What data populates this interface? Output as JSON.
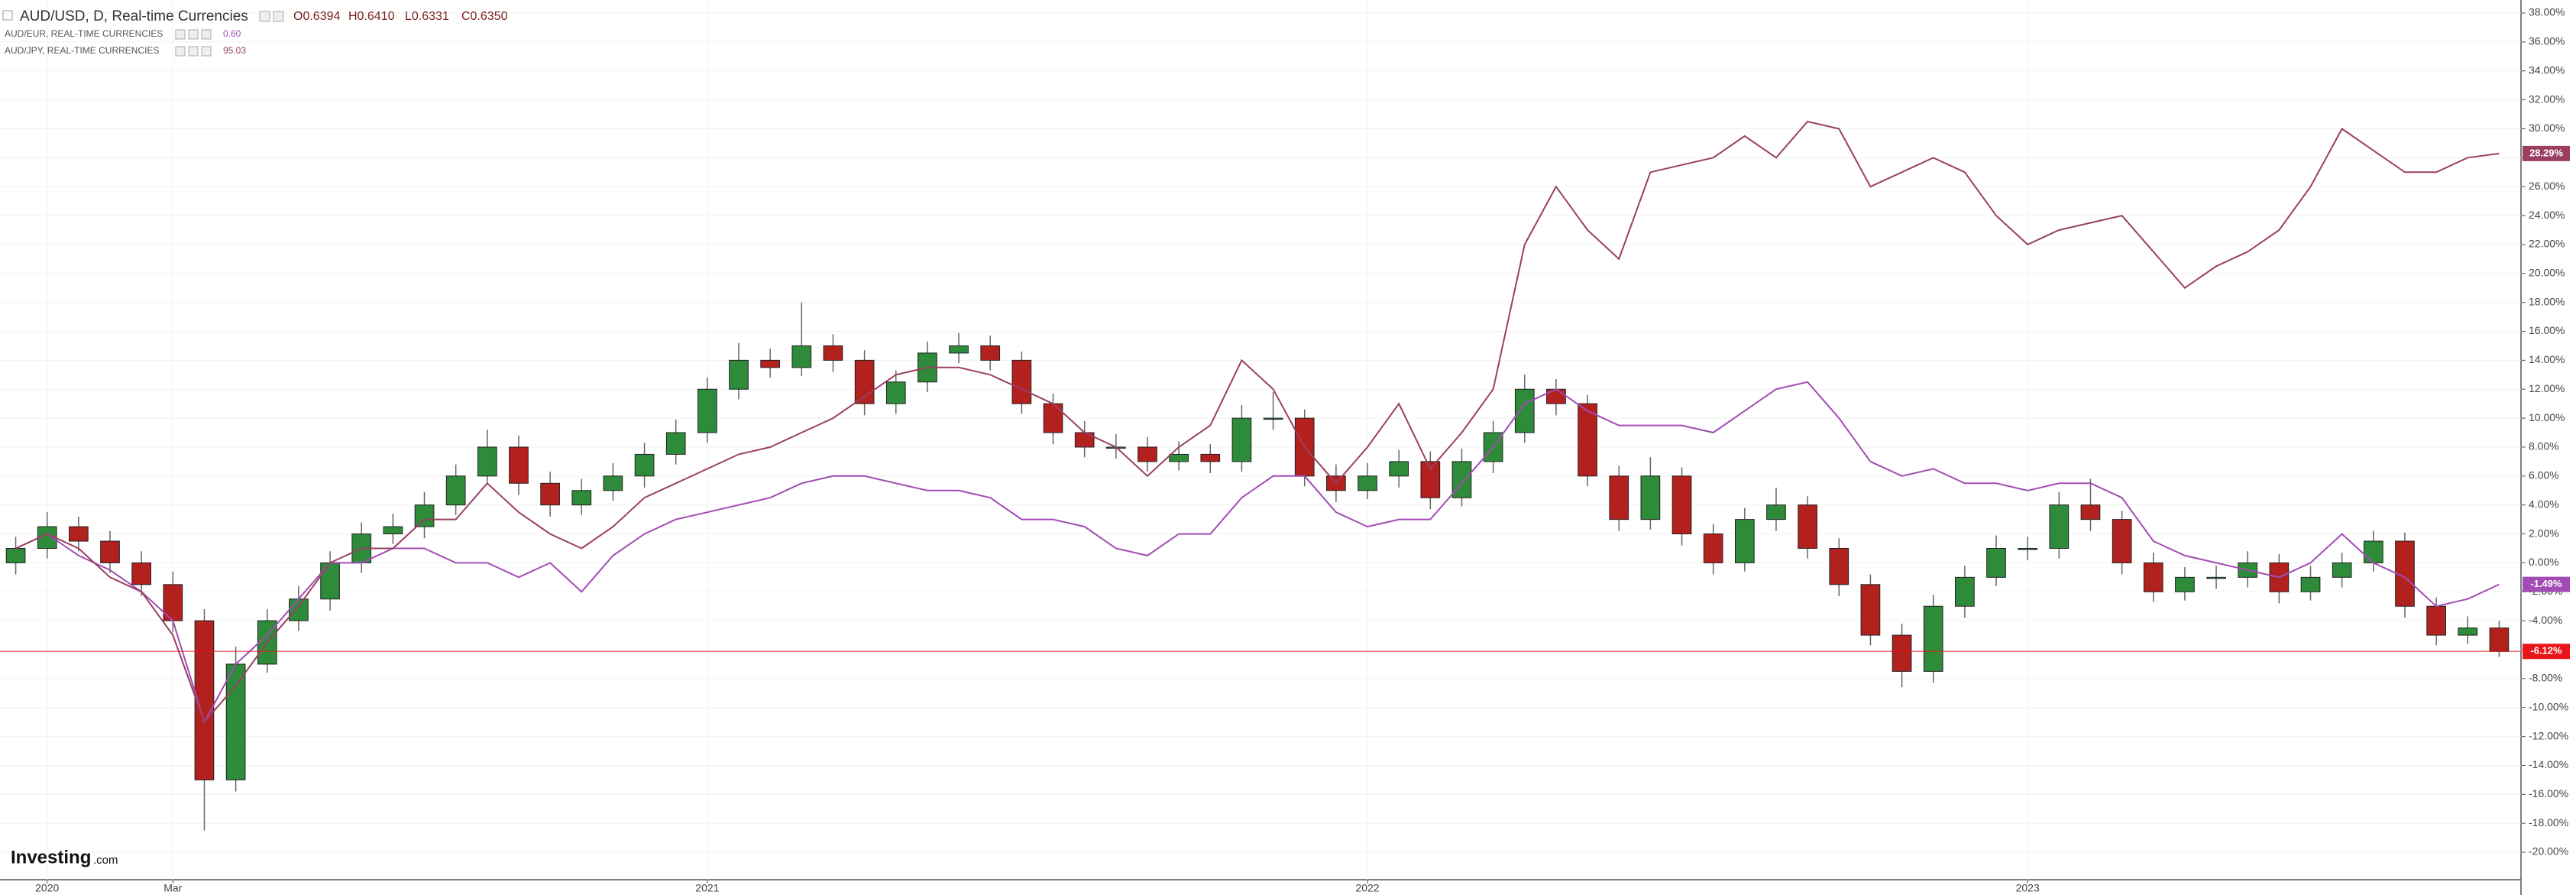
{
  "chart_data": {
    "type": "candlestick",
    "ohlc_legend": [
      "O0.6394",
      "H0.6410",
      "L0.6331",
      "C0.6350"
    ],
    "watermark": [
      "Investing",
      ".com"
    ],
    "categories": [
      null,
      "2020",
      null,
      null,
      null,
      "Mar",
      null,
      null,
      null,
      null,
      null,
      null,
      null,
      null,
      null,
      null,
      null,
      null,
      null,
      null,
      null,
      null,
      "2021",
      null,
      null,
      null,
      null,
      null,
      null,
      null,
      null,
      null,
      null,
      null,
      null,
      null,
      null,
      null,
      null,
      null,
      null,
      null,
      null,
      "2022",
      null,
      null,
      null,
      null,
      null,
      null,
      null,
      null,
      null,
      null,
      null,
      null,
      null,
      null,
      null,
      null,
      null,
      null,
      null,
      null,
      "2023",
      null,
      null,
      null,
      null,
      null,
      null,
      null,
      null,
      null,
      null,
      null,
      null,
      null,
      null,
      null
    ],
    "ylim": [
      -21.9,
      38.9
    ],
    "yticks": [
      {
        "value": 38,
        "label": "38.00%"
      },
      {
        "value": 36,
        "label": "36.00%"
      },
      {
        "value": 34,
        "label": "34.00%"
      },
      {
        "value": 32,
        "label": "32.00%"
      },
      {
        "value": 30,
        "label": "30.00%"
      },
      {
        "value": 28,
        "label": "28.00%"
      },
      {
        "value": 26,
        "label": "26.00%"
      },
      {
        "value": 24,
        "label": "24.00%"
      },
      {
        "value": 22,
        "label": "22.00%"
      },
      {
        "value": 20,
        "label": "20.00%"
      },
      {
        "value": 18,
        "label": "18.00%"
      },
      {
        "value": 16,
        "label": "16.00%"
      },
      {
        "value": 14,
        "label": "14.00%"
      },
      {
        "value": 12,
        "label": "12.00%"
      },
      {
        "value": 10,
        "label": "10.00%"
      },
      {
        "value": 8,
        "label": "8.00%"
      },
      {
        "value": 6,
        "label": "6.00%"
      },
      {
        "value": 4,
        "label": "4.00%"
      },
      {
        "value": 2,
        "label": "2.00%"
      },
      {
        "value": 0,
        "label": "0.00%"
      },
      {
        "value": -2,
        "label": "-2.00%"
      },
      {
        "value": -4,
        "label": "-4.00%"
      },
      {
        "value": -6,
        "label": "-6.00%"
      },
      {
        "value": -8,
        "label": "-8.00%"
      },
      {
        "value": -10,
        "label": "-10.00%"
      },
      {
        "value": -12,
        "label": "-12.00%"
      },
      {
        "value": -14,
        "label": "-14.00%"
      },
      {
        "value": -16,
        "label": "-16.00%"
      },
      {
        "value": -18,
        "label": "-18.00%"
      },
      {
        "value": -20,
        "label": "-20.00%"
      }
    ],
    "grid": true,
    "series": [
      {
        "name": "AUD/USD, D, Real-time Currencies",
        "up_color": "#2e8b3a",
        "down_color": "#b3211e",
        "label_color": "#e8161b",
        "open": [
          0,
          1,
          2.5,
          1.5,
          0,
          -1.5,
          -4,
          -15,
          -7,
          -4,
          -2.5,
          0,
          2,
          2.5,
          4,
          6,
          8,
          5.5,
          4,
          5,
          6,
          7.5,
          9,
          12,
          14,
          13.5,
          15,
          14,
          11,
          12.5,
          14.5,
          15,
          14,
          11,
          9,
          8,
          8,
          7,
          7.5,
          7,
          10,
          10,
          6,
          5,
          6,
          7,
          4.5,
          7,
          9,
          12,
          11,
          6,
          3,
          6,
          2,
          0,
          3,
          4,
          1,
          -1.5,
          -5,
          -7.5,
          -3,
          -1,
          1,
          1,
          4,
          3,
          0,
          -2,
          -1,
          -1,
          0,
          -2,
          -1,
          0,
          1.5,
          -3,
          -5,
          -4.5
        ],
        "high": [
          1.8,
          3.5,
          3.2,
          2.2,
          0.8,
          -0.6,
          -3.2,
          -5.8,
          -3.2,
          -1.6,
          0.8,
          2.8,
          3.4,
          4.9,
          6.8,
          9.2,
          8.8,
          6.3,
          5.8,
          6.9,
          8.3,
          9.9,
          12.8,
          15.2,
          14.8,
          18,
          15.8,
          14.7,
          13.3,
          15.3,
          15.9,
          15.7,
          14.6,
          11.7,
          9.8,
          8.9,
          8.7,
          8.4,
          8.2,
          10.9,
          11.8,
          10.6,
          6.8,
          6.9,
          7.8,
          7.7,
          7.9,
          9.8,
          13,
          12.7,
          11.6,
          6.7,
          7.3,
          6.6,
          2.7,
          3.8,
          5.2,
          4.6,
          1.7,
          -0.8,
          -4.2,
          -2.2,
          -0.2,
          1.9,
          1.8,
          4.9,
          5.8,
          3.6,
          0.7,
          -0.3,
          -0.2,
          0.8,
          0.6,
          -0.2,
          0.7,
          2.2,
          2.1,
          -2.4,
          -3.7,
          -4
        ],
        "low": [
          -0.8,
          0.3,
          0.8,
          -0.7,
          -2.3,
          -4.8,
          -18.5,
          -15.8,
          -7.6,
          -4.7,
          -3.3,
          -0.7,
          1.3,
          1.7,
          3.3,
          5.4,
          4.7,
          3.2,
          3.3,
          4.3,
          5.2,
          6.8,
          8.3,
          11.3,
          12.8,
          12.9,
          13.2,
          10.2,
          10.3,
          11.8,
          13.8,
          13.3,
          10.3,
          8.2,
          7.3,
          7.2,
          6.3,
          6.4,
          6.2,
          6.3,
          9.2,
          5.3,
          4.2,
          4.4,
          5.2,
          3.7,
          3.9,
          6.2,
          8.3,
          10.2,
          5.3,
          2.2,
          2.3,
          1.2,
          -0.8,
          -0.6,
          2.2,
          0.3,
          -2.3,
          -5.7,
          -8.6,
          -8.3,
          -3.8,
          -1.6,
          0.2,
          0.3,
          2.2,
          -0.8,
          -2.7,
          -2.6,
          -1.8,
          -1.7,
          -2.8,
          -2.6,
          -1.7,
          -0.6,
          -3.8,
          -5.7,
          -5.6,
          -6.5
        ],
        "close": [
          1,
          2.5,
          1.5,
          0,
          -1.5,
          -4,
          -15,
          -7,
          -4,
          -2.5,
          0,
          2,
          2.5,
          4,
          6,
          8,
          5.5,
          4,
          5,
          6,
          7.5,
          9,
          12,
          14,
          13.5,
          15,
          14,
          11,
          12.5,
          14.5,
          15,
          14,
          11,
          9,
          8,
          8,
          7,
          7.5,
          7,
          10,
          10,
          6,
          5,
          6,
          7,
          4.5,
          7,
          9,
          12,
          11,
          6,
          3,
          6,
          2,
          0,
          3,
          4,
          1,
          -1.5,
          -5,
          -7.5,
          -3,
          -1,
          1,
          1,
          4,
          3,
          0,
          -2,
          -1,
          -1,
          0,
          -2,
          -1,
          0,
          1.5,
          -3,
          -5,
          -4.5,
          -6.12
        ],
        "close_labels": [
          null,
          null,
          null,
          null,
          null,
          null,
          null,
          null,
          null,
          null,
          null,
          null,
          null,
          null,
          null,
          null,
          null,
          null,
          null,
          null,
          null,
          null,
          null,
          null,
          null,
          null,
          null,
          null,
          null,
          null,
          null,
          null,
          null,
          null,
          null,
          null,
          null,
          null,
          null,
          null,
          null,
          null,
          null,
          null,
          null,
          null,
          null,
          null,
          null,
          null,
          null,
          null,
          null,
          null,
          null,
          null,
          null,
          null,
          null,
          null,
          null,
          null,
          null,
          null,
          null,
          null,
          null,
          null,
          null,
          null,
          null,
          null,
          null,
          null,
          null,
          null,
          null,
          null,
          null,
          "-6.12%"
        ]
      },
      {
        "name": "AUD/EUR, REAL-TIME CURRENCIES",
        "legend_value": "0.60",
        "color": "#a24bb4",
        "values": [
          1,
          2,
          0.5,
          -0.5,
          -2,
          -4,
          -11,
          -7,
          -5,
          -2.5,
          0,
          0,
          1,
          1,
          0,
          0,
          -1,
          0,
          -2,
          0.5,
          2,
          3,
          3.5,
          4,
          4.5,
          5.5,
          6,
          6,
          5.5,
          5,
          5,
          4.5,
          3,
          3,
          2.5,
          1,
          0.5,
          2,
          2,
          4.5,
          6,
          6,
          3.5,
          2.5,
          3,
          3,
          5.5,
          8,
          11,
          12,
          10.5,
          9.5,
          9.5,
          9.5,
          9,
          10.5,
          12,
          12.5,
          10,
          7,
          6,
          6.5,
          5.5,
          5.5,
          5,
          5.5,
          5.5,
          4.5,
          1.5,
          0.5,
          0,
          -0.5,
          -1,
          0,
          2,
          0,
          -1,
          -3,
          -2.5,
          -1.49
        ],
        "value_labels": [
          null,
          null,
          null,
          null,
          null,
          null,
          null,
          null,
          null,
          null,
          null,
          null,
          null,
          null,
          null,
          null,
          null,
          null,
          null,
          null,
          null,
          null,
          null,
          null,
          null,
          null,
          null,
          null,
          null,
          null,
          null,
          null,
          null,
          null,
          null,
          null,
          null,
          null,
          null,
          null,
          null,
          null,
          null,
          null,
          null,
          null,
          null,
          null,
          null,
          null,
          null,
          null,
          null,
          null,
          null,
          null,
          null,
          null,
          null,
          null,
          null,
          null,
          null,
          null,
          null,
          null,
          null,
          null,
          null,
          null,
          null,
          null,
          null,
          null,
          null,
          null,
          null,
          null,
          null,
          "-1.49%"
        ]
      },
      {
        "name": "AUD/JPY, REAL-TIME CURRENCIES",
        "legend_value": "95.03",
        "color": "#9a3f62",
        "values": [
          1,
          2,
          1,
          -1,
          -2,
          -5,
          -11,
          -8.5,
          -5.5,
          -3,
          0,
          1,
          1,
          3,
          3,
          5.5,
          3.5,
          2,
          1,
          2.5,
          4.5,
          5.5,
          6.5,
          7.5,
          8,
          9,
          10,
          11.5,
          13,
          13.5,
          13.5,
          13,
          12,
          11,
          9,
          8,
          6,
          8,
          9.5,
          14,
          12,
          8,
          5.5,
          8,
          11,
          6.5,
          9,
          12,
          22,
          26,
          23,
          21,
          27,
          27.5,
          28,
          29.5,
          28,
          30.5,
          30,
          26,
          27,
          28,
          27,
          24,
          22,
          23,
          23.5,
          24,
          21.5,
          19,
          20.5,
          21.5,
          23,
          26,
          30,
          28.5,
          27,
          27,
          28,
          28.29
        ],
        "value_labels": [
          null,
          null,
          null,
          null,
          null,
          null,
          null,
          null,
          null,
          null,
          null,
          null,
          null,
          null,
          null,
          null,
          null,
          null,
          null,
          null,
          null,
          null,
          null,
          null,
          null,
          null,
          null,
          null,
          null,
          null,
          null,
          null,
          null,
          null,
          null,
          null,
          null,
          null,
          null,
          null,
          null,
          null,
          null,
          null,
          null,
          null,
          null,
          null,
          null,
          null,
          null,
          null,
          null,
          null,
          null,
          null,
          null,
          null,
          null,
          null,
          null,
          null,
          null,
          null,
          null,
          null,
          null,
          null,
          null,
          null,
          null,
          null,
          null,
          null,
          null,
          null,
          null,
          null,
          null,
          "28.29%"
        ]
      }
    ]
  }
}
